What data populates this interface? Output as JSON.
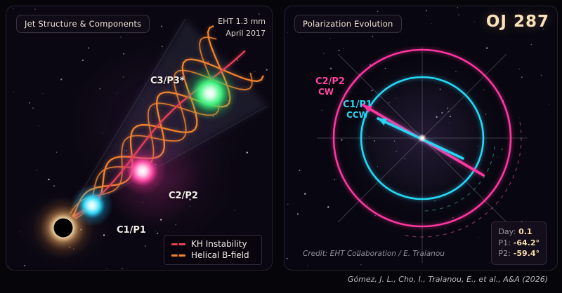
{
  "left_panel": {
    "title": "Jet Structure & Components",
    "instrument": "EHT 1.3 mm",
    "epoch": "April 2017",
    "component_labels": {
      "c1": "C1/P1",
      "c2": "C2/P2",
      "c3": "C3/P3*"
    },
    "legend": [
      {
        "label": "KH Instability",
        "color": "#ea4056"
      },
      {
        "label": "Helical B-field",
        "color": "#ef8430"
      }
    ]
  },
  "right_panel": {
    "title": "Polarization Evolution",
    "source_name": "OJ 287",
    "components": [
      {
        "name": "C2/P2",
        "direction": "CW",
        "color": "#ff35a0"
      },
      {
        "name": "C1/P1",
        "direction": "CCW",
        "color": "#26d7f4"
      }
    ],
    "readout": {
      "day_label": "Day:",
      "day_value": "0.1",
      "p1_label": "P1:",
      "p1_value": "-64.2°",
      "p2_label": "P2:",
      "p2_value": "-59.4°"
    },
    "credit": "Credit: EHT Collaboration / E. Traianou"
  },
  "footer": "Gómez, J. L., Cho, I., Traianou, E., et al., A&A (2026)",
  "chart_data": {
    "type": "polar",
    "title": "Polarization Evolution",
    "day": 0.1,
    "series": [
      {
        "name": "C2/P2",
        "angle_deg": -59.4,
        "rotation": "CW",
        "radius_norm": 1.0
      },
      {
        "name": "C1/P1",
        "angle_deg": -64.2,
        "rotation": "CCW",
        "radius_norm": 0.69
      }
    ]
  }
}
